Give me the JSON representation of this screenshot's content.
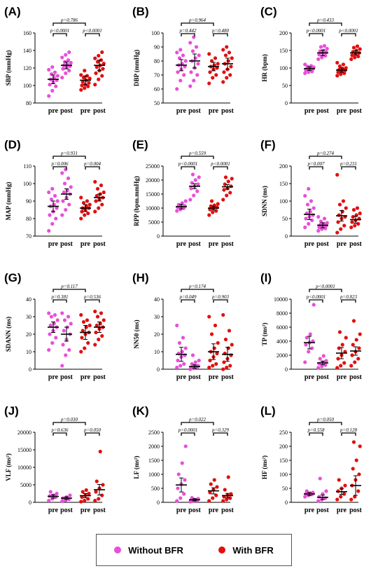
{
  "colors": {
    "without": "#e84fd8",
    "with": "#e01010",
    "bar": "#000000"
  },
  "group_labels": [
    "pre",
    "post",
    "pre",
    "post"
  ],
  "legend": {
    "without_label": "Without BFR",
    "with_label": "With BFR"
  },
  "chart_data": [
    {
      "type": "scatter",
      "panel": "(A)",
      "ylabel": "SBP (mmHg)",
      "ylim": [
        80,
        160
      ],
      "yticks": [
        "80",
        "100",
        "120",
        "140",
        "160"
      ],
      "means": [
        107,
        123,
        106,
        123
      ],
      "errs": [
        5,
        4,
        5,
        6
      ],
      "p_top": "p=0.786",
      "p_left": "p<0.0001",
      "p_right": "p<0.0001",
      "points": [
        [
          88,
          94,
          99,
          101,
          104,
          106,
          107,
          109,
          111,
          113,
          115,
          118,
          121
        ],
        [
          109,
          114,
          117,
          119,
          121,
          122,
          123,
          124,
          126,
          127,
          129,
          132,
          135,
          138
        ],
        [
          95,
          97,
          99,
          100,
          101,
          103,
          104,
          106,
          108,
          109,
          111,
          112,
          117
        ],
        [
          101,
          107,
          111,
          114,
          117,
          119,
          121,
          123,
          125,
          127,
          129,
          131,
          134,
          138
        ]
      ]
    },
    {
      "type": "scatter",
      "panel": "(B)",
      "ylabel": "DBP (mmHg)",
      "ylim": [
        50,
        100
      ],
      "yticks": [
        "50",
        "60",
        "70",
        "80",
        "90",
        "100"
      ],
      "means": [
        77,
        80,
        76,
        78
      ],
      "errs": [
        4,
        5,
        3,
        4
      ],
      "p_top": "p=0.964",
      "p_left": "p=0.442",
      "p_right": "p=0.480",
      "points": [
        [
          60,
          66,
          70,
          72,
          74,
          76,
          77,
          78,
          80,
          82,
          84,
          86,
          88
        ],
        [
          62,
          66,
          70,
          72,
          75,
          78,
          80,
          82,
          84,
          87,
          90,
          93,
          97
        ],
        [
          64,
          68,
          70,
          72,
          74,
          75,
          76,
          77,
          78,
          80,
          82,
          85
        ],
        [
          65,
          68,
          70,
          72,
          74,
          76,
          78,
          80,
          82,
          84,
          86,
          88,
          90
        ]
      ]
    },
    {
      "type": "scatter",
      "panel": "(C)",
      "ylabel": "HR (bpm)",
      "ylim": [
        0,
        200
      ],
      "yticks": [
        "0",
        "50",
        "100",
        "150",
        "200"
      ],
      "means": [
        98,
        143,
        94,
        143
      ],
      "errs": [
        5,
        8,
        6,
        6
      ],
      "p_top": "p=0.433",
      "p_left": "p<0.0001",
      "p_right": "p<0.0001",
      "points": [
        [
          85,
          88,
          90,
          93,
          95,
          97,
          98,
          100,
          102,
          104,
          106,
          110
        ],
        [
          125,
          130,
          135,
          138,
          142,
          145,
          148,
          150,
          155,
          160,
          163
        ],
        [
          78,
          82,
          85,
          88,
          90,
          93,
          95,
          98,
          100,
          105,
          110,
          115
        ],
        [
          125,
          130,
          133,
          136,
          140,
          143,
          146,
          150,
          154,
          158,
          162
        ]
      ]
    },
    {
      "type": "scatter",
      "panel": "(D)",
      "ylabel": "MAP (mmHg)",
      "ylim": [
        70,
        110
      ],
      "yticks": [
        "70",
        "80",
        "90",
        "100",
        "110"
      ],
      "means": [
        87,
        94,
        86,
        92
      ],
      "errs": [
        3,
        3,
        2,
        2
      ],
      "p_top": "p=0.931",
      "p_left": "p=0.006",
      "p_right": "p=0.004",
      "points": [
        [
          73,
          77,
          80,
          82,
          84,
          86,
          87,
          88,
          90,
          91,
          93,
          95,
          97
        ],
        [
          82,
          85,
          88,
          90,
          92,
          94,
          95,
          96,
          98,
          100,
          103,
          106,
          108
        ],
        [
          80,
          82,
          83,
          84,
          85,
          86,
          86,
          87,
          88,
          89,
          90,
          92
        ],
        [
          84,
          86,
          88,
          90,
          91,
          92,
          93,
          94,
          95,
          97,
          99,
          101
        ]
      ]
    },
    {
      "type": "scatter",
      "panel": "(E)",
      "ylabel": "RPP (bpm.mmHg)",
      "ylim": [
        0,
        25000
      ],
      "yticks": [
        "0",
        "5000",
        "10000",
        "15000",
        "20000",
        "25000"
      ],
      "means": [
        10500,
        17800,
        10000,
        17600
      ],
      "errs": [
        800,
        900,
        700,
        800
      ],
      "p_top": "p=0.559",
      "p_left": "p<0.0001",
      "p_right": "p<0.0001",
      "points": [
        [
          9000,
          9500,
          10000,
          10300,
          10500,
          10800,
          11200,
          11800,
          12500
        ],
        [
          13000,
          14500,
          16000,
          17000,
          17800,
          18500,
          19000,
          20000,
          21000,
          22000
        ],
        [
          7500,
          8500,
          9000,
          9500,
          10000,
          10300,
          10700,
          11000,
          11500,
          12500
        ],
        [
          13000,
          14500,
          15500,
          16500,
          17000,
          17800,
          18500,
          19500,
          20500,
          21000
        ]
      ]
    },
    {
      "type": "scatter",
      "panel": "(F)",
      "ylabel": "SDNN (ms)",
      "ylim": [
        0,
        200
      ],
      "yticks": [
        "0",
        "50",
        "100",
        "150",
        "200"
      ],
      "means": [
        62,
        31,
        58,
        47
      ],
      "errs": [
        15,
        7,
        15,
        10
      ],
      "p_top": "p=0.274",
      "p_left": "p=0.007",
      "p_right": "p=0.231",
      "points": [
        [
          25,
          35,
          45,
          50,
          55,
          60,
          65,
          70,
          80,
          90,
          100,
          115,
          135
        ],
        [
          15,
          20,
          22,
          25,
          28,
          30,
          32,
          35,
          38,
          42,
          50,
          55
        ],
        [
          10,
          20,
          30,
          40,
          50,
          55,
          60,
          70,
          80,
          90,
          100,
          175
        ],
        [
          25,
          30,
          35,
          40,
          45,
          50,
          55,
          60,
          65,
          75,
          80
        ]
      ]
    },
    {
      "type": "scatter",
      "panel": "(G)",
      "ylabel": "SDANN (ms)",
      "ylim": [
        0,
        40
      ],
      "yticks": [
        "0",
        "10",
        "20",
        "30",
        "40"
      ],
      "means": [
        24,
        20,
        21,
        24
      ],
      "errs": [
        3,
        4,
        4,
        3
      ],
      "p_top": "p=0.117",
      "p_left": "p=0.381",
      "p_right": "p=0.536",
      "points": [
        [
          11,
          15,
          18,
          20,
          22,
          24,
          25,
          26,
          28,
          30,
          31,
          32
        ],
        [
          2,
          8,
          11,
          14,
          17,
          20,
          22,
          24,
          26,
          28,
          30,
          32
        ],
        [
          10,
          12,
          15,
          18,
          20,
          21,
          22,
          24,
          25,
          27,
          28,
          31
        ],
        [
          14,
          17,
          19,
          21,
          23,
          24,
          25,
          26,
          28,
          30,
          32,
          33
        ]
      ]
    },
    {
      "type": "scatter",
      "panel": "(H)",
      "ylabel": "NN50 (ms)",
      "ylim": [
        0,
        40
      ],
      "yticks": [
        "0",
        "10",
        "20",
        "30",
        "40"
      ],
      "means": [
        8.5,
        1.5,
        10,
        8.5
      ],
      "errs": [
        4,
        1,
        4.5,
        4
      ],
      "p_top": "p=0.174",
      "p_left": "p=0.049",
      "p_right": "p=0.903",
      "points": [
        [
          1,
          2,
          3,
          5,
          7,
          8,
          9,
          10,
          12,
          15,
          18,
          25
        ],
        [
          0,
          0.5,
          1,
          1,
          2,
          2,
          3,
          4,
          5,
          8
        ],
        [
          1,
          2,
          3,
          5,
          7,
          9,
          10,
          12,
          15,
          20,
          25,
          30
        ],
        [
          0,
          1,
          2,
          4,
          6,
          8,
          9,
          12,
          14,
          17,
          22,
          31
        ]
      ]
    },
    {
      "type": "scatter",
      "panel": "(I)",
      "ylabel": "TP (ms²)",
      "ylim": [
        0,
        10000
      ],
      "yticks": [
        "0",
        "2000",
        "4000",
        "6000",
        "8000",
        "10000"
      ],
      "means": [
        3800,
        900,
        2300,
        2600
      ],
      "errs": [
        900,
        250,
        800,
        600
      ],
      "p_top": "p<0.0001",
      "p_left": "p<0.0001",
      "p_right": "p=0.823",
      "points": [
        [
          1000,
          2500,
          3000,
          3500,
          3800,
          4000,
          4500,
          5000,
          9200
        ],
        [
          200,
          400,
          600,
          800,
          1000,
          1200,
          1500,
          1900
        ],
        [
          200,
          500,
          900,
          1500,
          2000,
          2500,
          3000,
          3500,
          4500,
          5300
        ],
        [
          500,
          1000,
          1500,
          2000,
          2500,
          3000,
          3500,
          4200,
          5000,
          6900
        ]
      ]
    },
    {
      "type": "scatter",
      "panel": "(J)",
      "ylabel": "VLF (ms²)",
      "ylim": [
        0,
        20000
      ],
      "yticks": [
        "0",
        "5000",
        "10000",
        "15000",
        "20000"
      ],
      "means": [
        1700,
        1200,
        1900,
        3600
      ],
      "errs": [
        500,
        400,
        600,
        1500
      ],
      "p_top": "p=0.030",
      "p_left": "p=0.636",
      "p_right": "p=0.050",
      "points": [
        [
          500,
          1000,
          1500,
          1800,
          2000,
          2500,
          3000
        ],
        [
          300,
          600,
          900,
          1200,
          1500,
          2000
        ],
        [
          200,
          500,
          1000,
          1500,
          2000,
          2500,
          3000,
          3500
        ],
        [
          500,
          1000,
          2000,
          3000,
          4000,
          5000,
          6000,
          14500
        ]
      ]
    },
    {
      "type": "scatter",
      "panel": "(K)",
      "ylabel": "LF (ms²)",
      "ylim": [
        0,
        2500
      ],
      "yticks": [
        "0",
        "500",
        "1000",
        "1500",
        "2000",
        "2500"
      ],
      "means": [
        620,
        90,
        410,
        240
      ],
      "errs": [
        250,
        40,
        110,
        80
      ],
      "p_top": "p=0.022",
      "p_left": "p<0.0001",
      "p_right": "p=0.329",
      "points": [
        [
          50,
          150,
          300,
          500,
          650,
          800,
          1000,
          1400,
          2000
        ],
        [
          20,
          40,
          60,
          80,
          100,
          130,
          160
        ],
        [
          50,
          150,
          250,
          350,
          450,
          550,
          650,
          800
        ],
        [
          50,
          100,
          150,
          200,
          250,
          300,
          450,
          900
        ]
      ]
    },
    {
      "type": "scatter",
      "panel": "(L)",
      "ylabel": "HF (ms²)",
      "ylim": [
        0,
        250
      ],
      "yticks": [
        "0",
        "50",
        "100",
        "150",
        "200",
        "250"
      ],
      "means": [
        30,
        18,
        38,
        60
      ],
      "errs": [
        6,
        8,
        10,
        35
      ],
      "p_top": "p=0.050",
      "p_left": "p=0.558",
      "p_right": "p=0.128",
      "points": [
        [
          20,
          25,
          28,
          30,
          32,
          35,
          40
        ],
        [
          5,
          10,
          15,
          20,
          30,
          40,
          85
        ],
        [
          10,
          20,
          30,
          40,
          50,
          60,
          80
        ],
        [
          10,
          20,
          40,
          60,
          80,
          100,
          120,
          150,
          200,
          215
        ]
      ]
    }
  ]
}
